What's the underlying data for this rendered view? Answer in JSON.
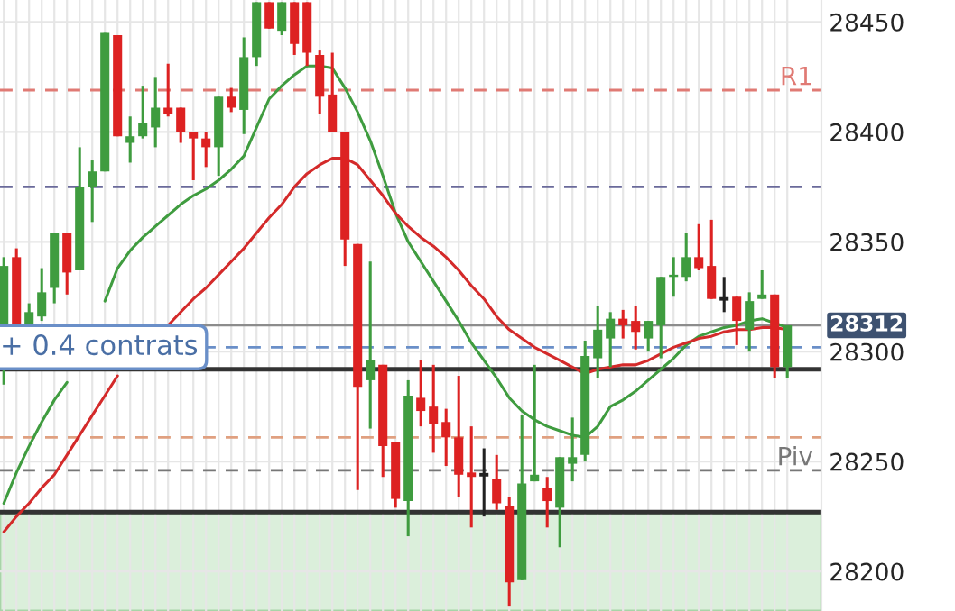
{
  "chart_data": {
    "type": "candlestick",
    "categories": [
      null,
      null,
      null,
      null,
      null,
      null,
      null,
      null,
      null,
      null,
      null,
      null,
      null,
      null,
      null,
      null,
      null,
      null,
      null,
      null,
      null,
      null,
      null,
      null,
      null,
      null,
      null,
      null,
      null,
      null,
      null,
      null,
      null,
      null,
      null,
      null,
      null,
      null,
      null,
      null,
      null,
      null,
      null,
      null,
      null,
      null,
      null,
      null,
      null,
      null,
      null,
      null,
      null,
      null,
      null,
      null,
      null,
      null,
      null,
      null,
      null,
      null,
      null
    ],
    "ohlc": [
      [
        28312,
        28343,
        28285,
        28339
      ],
      [
        28343,
        28347,
        28311,
        28312
      ],
      [
        28312,
        28322,
        28311,
        28318
      ],
      [
        28316,
        28338,
        28314,
        28327
      ],
      [
        28329,
        28354,
        28322,
        28354
      ],
      [
        28354,
        28354,
        28326,
        28336
      ],
      [
        28337,
        28393,
        28337,
        28375
      ],
      [
        28375,
        28387,
        28359,
        28382
      ],
      [
        28382,
        28445,
        28382,
        28445
      ],
      [
        28444,
        28444,
        28398,
        28398
      ],
      [
        28395,
        28407,
        28386,
        28398
      ],
      [
        28398,
        28421,
        28397,
        28404
      ],
      [
        28402,
        28425,
        28393,
        28411
      ],
      [
        28411,
        28431,
        28407,
        28408
      ],
      [
        28411,
        28411,
        28395,
        28400
      ],
      [
        28400,
        28400,
        28378,
        28397
      ],
      [
        28397,
        28400,
        28384,
        28393
      ],
      [
        28393,
        28416,
        28380,
        28416
      ],
      [
        28416,
        28420,
        28409,
        28411
      ],
      [
        28410,
        28443,
        28399,
        28434
      ],
      [
        28434,
        28459,
        28430,
        28459
      ],
      [
        28459,
        28459,
        28447,
        28447
      ],
      [
        28446,
        28459,
        28444,
        28459
      ],
      [
        28459,
        28459,
        28435,
        28440
      ],
      [
        28459,
        28459,
        28430,
        28436
      ],
      [
        28435,
        28437,
        28408,
        28416
      ],
      [
        28417,
        28436,
        28400,
        28400
      ],
      [
        28400,
        28400,
        28339,
        28351
      ],
      [
        28349,
        28349,
        28237,
        28284
      ],
      [
        28287,
        28341,
        28265,
        28296
      ],
      [
        28294,
        28294,
        28243,
        28257
      ],
      [
        28259,
        28259,
        28229,
        28233
      ],
      [
        28232,
        28287,
        28216,
        28280
      ],
      [
        28279,
        28296,
        28266,
        28273
      ],
      [
        28275,
        28294,
        28254,
        28267
      ],
      [
        28268,
        28274,
        28248,
        28261
      ],
      [
        28261,
        28289,
        28234,
        28244
      ],
      [
        28245,
        28266,
        28220,
        28243
      ],
      [
        28244,
        28256,
        28225,
        28244
      ],
      [
        28242,
        28253,
        28228,
        28231
      ],
      [
        28230,
        28234,
        28184,
        28195
      ],
      [
        28196,
        28271,
        28196,
        28240
      ],
      [
        28241,
        28294,
        28241,
        28244
      ],
      [
        28238,
        28243,
        28220,
        28232
      ],
      [
        28229,
        28252,
        28211,
        28252
      ],
      [
        28249,
        28270,
        28241,
        28252
      ],
      [
        28253,
        28305,
        28250,
        28298
      ],
      [
        28297,
        28321,
        28288,
        28310
      ],
      [
        28306,
        28318,
        28293,
        28315
      ],
      [
        28315,
        28319,
        28306,
        28312
      ],
      [
        28314,
        28321,
        28301,
        28309
      ],
      [
        28306,
        28314,
        28300,
        28314
      ],
      [
        28312,
        28334,
        28297,
        28334
      ],
      [
        28334,
        28343,
        28325,
        28335
      ],
      [
        28334,
        28354,
        28332,
        28343
      ],
      [
        28343,
        28358,
        28337,
        28338
      ],
      [
        28339,
        28360,
        28324,
        28324
      ],
      [
        28324,
        28334,
        28318,
        28324
      ],
      [
        28325,
        28325,
        28303,
        28314
      ],
      [
        28310,
        28327,
        28300,
        28323
      ],
      [
        28324,
        28337,
        28324,
        28326
      ],
      [
        28326,
        28326,
        28288,
        28293
      ],
      [
        28293,
        28312,
        28288,
        28312
      ]
    ],
    "colors": [
      "#3f9c3f",
      "#dd2222",
      "#3f9c3f",
      "#3f9c3f",
      "#3f9c3f",
      "#dd2222",
      "#3f9c3f",
      "#3f9c3f",
      "#3f9c3f",
      "#dd2222",
      "#3f9c3f",
      "#3f9c3f",
      "#3f9c3f",
      "#dd2222",
      "#dd2222",
      "#dd2222",
      "#dd2222",
      "#3f9c3f",
      "#dd2222",
      "#3f9c3f",
      "#3f9c3f",
      "#dd2222",
      "#3f9c3f",
      "#dd2222",
      "#dd2222",
      "#dd2222",
      "#dd2222",
      "#dd2222",
      "#dd2222",
      "#3f9c3f",
      "#dd2222",
      "#dd2222",
      "#3f9c3f",
      "#dd2222",
      "#dd2222",
      "#dd2222",
      "#dd2222",
      "#dd2222",
      "#222222",
      "#dd2222",
      "#dd2222",
      "#3f9c3f",
      "#3f9c3f",
      "#dd2222",
      "#3f9c3f",
      "#3f9c3f",
      "#3f9c3f",
      "#3f9c3f",
      "#3f9c3f",
      "#dd2222",
      "#dd2222",
      "#3f9c3f",
      "#3f9c3f",
      "#3f9c3f",
      "#3f9c3f",
      "#dd2222",
      "#dd2222",
      "#222222",
      "#dd2222",
      "#3f9c3f",
      "#3f9c3f",
      "#dd2222",
      "#3f9c3f"
    ],
    "series": [
      {
        "type": "line",
        "color": "#3f9c3f",
        "values": [
          28231,
          28245,
          28257,
          28268,
          28278,
          28286,
          null,
          null,
          28323,
          28338,
          28346,
          28352,
          28357,
          28362,
          28367,
          28371,
          28374,
          28378,
          28383,
          28389,
          28402,
          28415,
          28421,
          28426,
          28430,
          28430,
          28429,
          28420,
          28409,
          28396,
          28380,
          28363,
          28350,
          28341,
          28332,
          28323,
          28314,
          28304,
          28296,
          28288,
          28279,
          28273,
          28269,
          28266,
          28264,
          28262,
          28261,
          28266,
          28275,
          28278,
          28282,
          28287,
          28292,
          28297,
          28303,
          28307,
          28309,
          28311,
          28312,
          28314,
          28315,
          28313,
          28311
        ]
      },
      {
        "type": "line",
        "color": "#d42a2a",
        "values": [
          28218,
          28225,
          28231,
          28238,
          28244,
          28253,
          28262,
          28271,
          28280,
          28289,
          null,
          null,
          null,
          28312,
          28318,
          28324,
          28329,
          28335,
          28341,
          28347,
          28354,
          28361,
          28367,
          28375,
          28381,
          28385,
          28388,
          28388,
          28385,
          28378,
          28371,
          28363,
          28357,
          28352,
          28348,
          28343,
          28337,
          28330,
          28324,
          28316,
          28310,
          28306,
          28302,
          28299,
          28296,
          28293,
          28290,
          28292,
          28293,
          28294,
          28294,
          28296,
          28299,
          28302,
          28304,
          28306,
          28307,
          28309,
          28310,
          28310,
          28311,
          28311,
          28310
        ]
      }
    ],
    "ylim": [
      28182,
      28460
    ],
    "yticks": [
      28200,
      28250,
      28300,
      28350,
      28400,
      28450
    ],
    "grid": true,
    "tick_labels": "y",
    "ref_lines": [
      {
        "axis": "y",
        "value": 28419,
        "label": "R1",
        "color": "#e07a74",
        "line_style": "dashed"
      },
      {
        "axis": "y",
        "value": 28375,
        "color": "#6a6a9a",
        "line_style": "dashed"
      },
      {
        "axis": "y",
        "value": 28312,
        "label": "28312",
        "color": "#8c8c8c",
        "line_style": "solid"
      },
      {
        "axis": "y",
        "value": 28302,
        "color": "#6a8fc8",
        "line_style": "dashed"
      },
      {
        "axis": "y",
        "value": 28292,
        "color": "#333333",
        "line_style": "solid"
      },
      {
        "axis": "y",
        "value": 28261,
        "color": "#e0a080",
        "line_style": "dashed"
      },
      {
        "axis": "y",
        "value": 28246,
        "label": "Piv",
        "color": "#777777",
        "line_style": "dashed"
      },
      {
        "axis": "y",
        "value": 28227,
        "color": "#333333",
        "line_style": "solid"
      }
    ],
    "bands": [
      {
        "axis": "y",
        "from": 28182,
        "to": 28226,
        "color": "#d8eed8"
      }
    ],
    "annotations": [
      {
        "text": "+ 0.4 contrats",
        "y": 28302
      }
    ]
  }
}
